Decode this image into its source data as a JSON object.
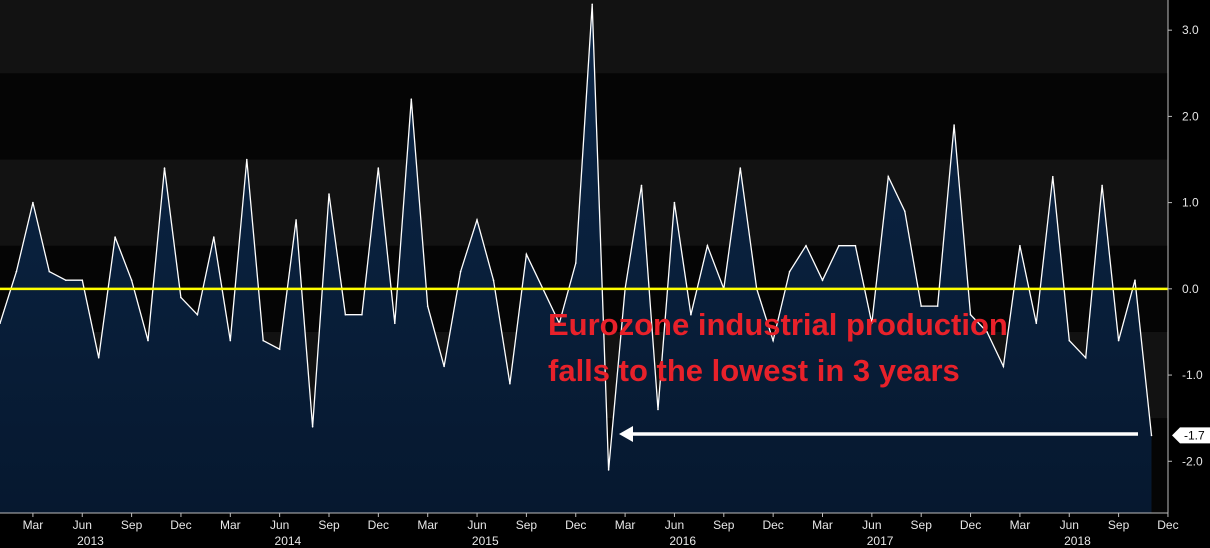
{
  "chart_data": {
    "type": "area",
    "title": "",
    "xlabel": "",
    "ylabel": "",
    "x_start": "2013-01",
    "ylim": [
      -2.6,
      3.35
    ],
    "y_ticks": [
      -2.0,
      -1.0,
      0.0,
      1.0,
      2.0,
      3.0
    ],
    "y_tick_labels": [
      "-2.0",
      "-1.0",
      "0.0",
      "1.0",
      "2.0",
      "3.0"
    ],
    "x_ticks": [
      {
        "label": "Mar",
        "month": 2
      },
      {
        "label": "Jun",
        "month": 5
      },
      {
        "label": "Sep",
        "month": 8
      },
      {
        "label": "Dec",
        "month": 11
      },
      {
        "label": "Mar",
        "month": 14
      },
      {
        "label": "Jun",
        "month": 17
      },
      {
        "label": "Sep",
        "month": 20
      },
      {
        "label": "Dec",
        "month": 23
      },
      {
        "label": "Mar",
        "month": 26
      },
      {
        "label": "Jun",
        "month": 29
      },
      {
        "label": "Sep",
        "month": 32
      },
      {
        "label": "Dec",
        "month": 35
      },
      {
        "label": "Mar",
        "month": 38
      },
      {
        "label": "Jun",
        "month": 41
      },
      {
        "label": "Sep",
        "month": 44
      },
      {
        "label": "Dec",
        "month": 47
      },
      {
        "label": "Mar",
        "month": 50
      },
      {
        "label": "Jun",
        "month": 53
      },
      {
        "label": "Sep",
        "month": 56
      },
      {
        "label": "Dec",
        "month": 59
      },
      {
        "label": "Mar",
        "month": 62
      },
      {
        "label": "Jun",
        "month": 65
      },
      {
        "label": "Sep",
        "month": 68
      },
      {
        "label": "Dec",
        "month": 71
      }
    ],
    "year_labels": [
      {
        "label": "2013",
        "month": 5.5
      },
      {
        "label": "2014",
        "month": 17.5
      },
      {
        "label": "2015",
        "month": 29.5
      },
      {
        "label": "2016",
        "month": 41.5
      },
      {
        "label": "2017",
        "month": 53.5
      },
      {
        "label": "2018",
        "month": 65.5
      }
    ],
    "values": [
      -0.4,
      0.2,
      1.0,
      0.2,
      0.1,
      0.1,
      -0.8,
      0.6,
      0.1,
      -0.6,
      1.4,
      -0.1,
      -0.3,
      0.6,
      -0.6,
      1.5,
      -0.6,
      -0.7,
      0.8,
      -1.6,
      1.1,
      -0.3,
      -0.3,
      1.4,
      -0.4,
      2.2,
      -0.2,
      -0.9,
      0.2,
      0.8,
      0.1,
      -1.1,
      0.4,
      0.0,
      -0.4,
      0.3,
      3.3,
      -2.1,
      0.0,
      1.2,
      -1.4,
      1.0,
      -0.3,
      0.5,
      0.0,
      1.4,
      0.0,
      -0.6,
      0.2,
      0.5,
      0.1,
      0.5,
      0.5,
      -0.4,
      1.3,
      0.9,
      -0.2,
      -0.2,
      1.9,
      -0.3,
      -0.5,
      -0.9,
      0.5,
      -0.4,
      1.3,
      -0.6,
      -0.8,
      1.2,
      -0.6,
      0.1,
      -1.7
    ],
    "last_value_label": "-1.7",
    "annotation": {
      "line1": "Eurozone industrial production",
      "line2": "falls to the lowest in 3 years"
    },
    "colors": {
      "background": "#000000",
      "series_line": "#ffffff",
      "area_top": "#0c2748",
      "area_bottom": "#06182f",
      "zero_line": "#ffff00",
      "annotation": "#e8212a",
      "arrow": "#ffffff"
    },
    "grid": false
  }
}
